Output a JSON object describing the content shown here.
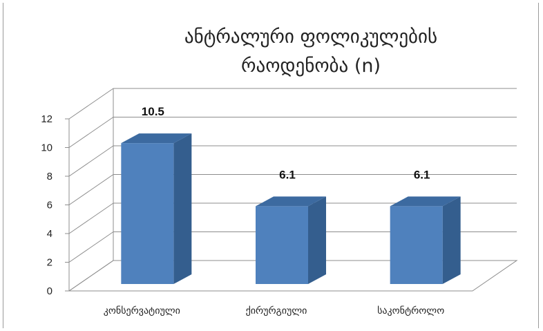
{
  "chart_data": {
    "type": "bar",
    "title_lines": [
      "ანტრალური ფოლიკულების",
      "რაოდენობა (n)"
    ],
    "categories": [
      "კონსერვატიული",
      "ქირურგიული",
      "საკონტროლო"
    ],
    "series": [
      {
        "values": [
          10.5,
          6.1,
          6.1
        ],
        "color": "#4f81bd"
      }
    ],
    "data_labels": [
      "10.5",
      "6.1",
      "6.1"
    ],
    "yticks": [
      "0",
      "2",
      "4",
      "6",
      "8",
      "10",
      "12"
    ],
    "ylim": [
      0,
      12
    ],
    "grid": true,
    "style": "3d-column"
  }
}
